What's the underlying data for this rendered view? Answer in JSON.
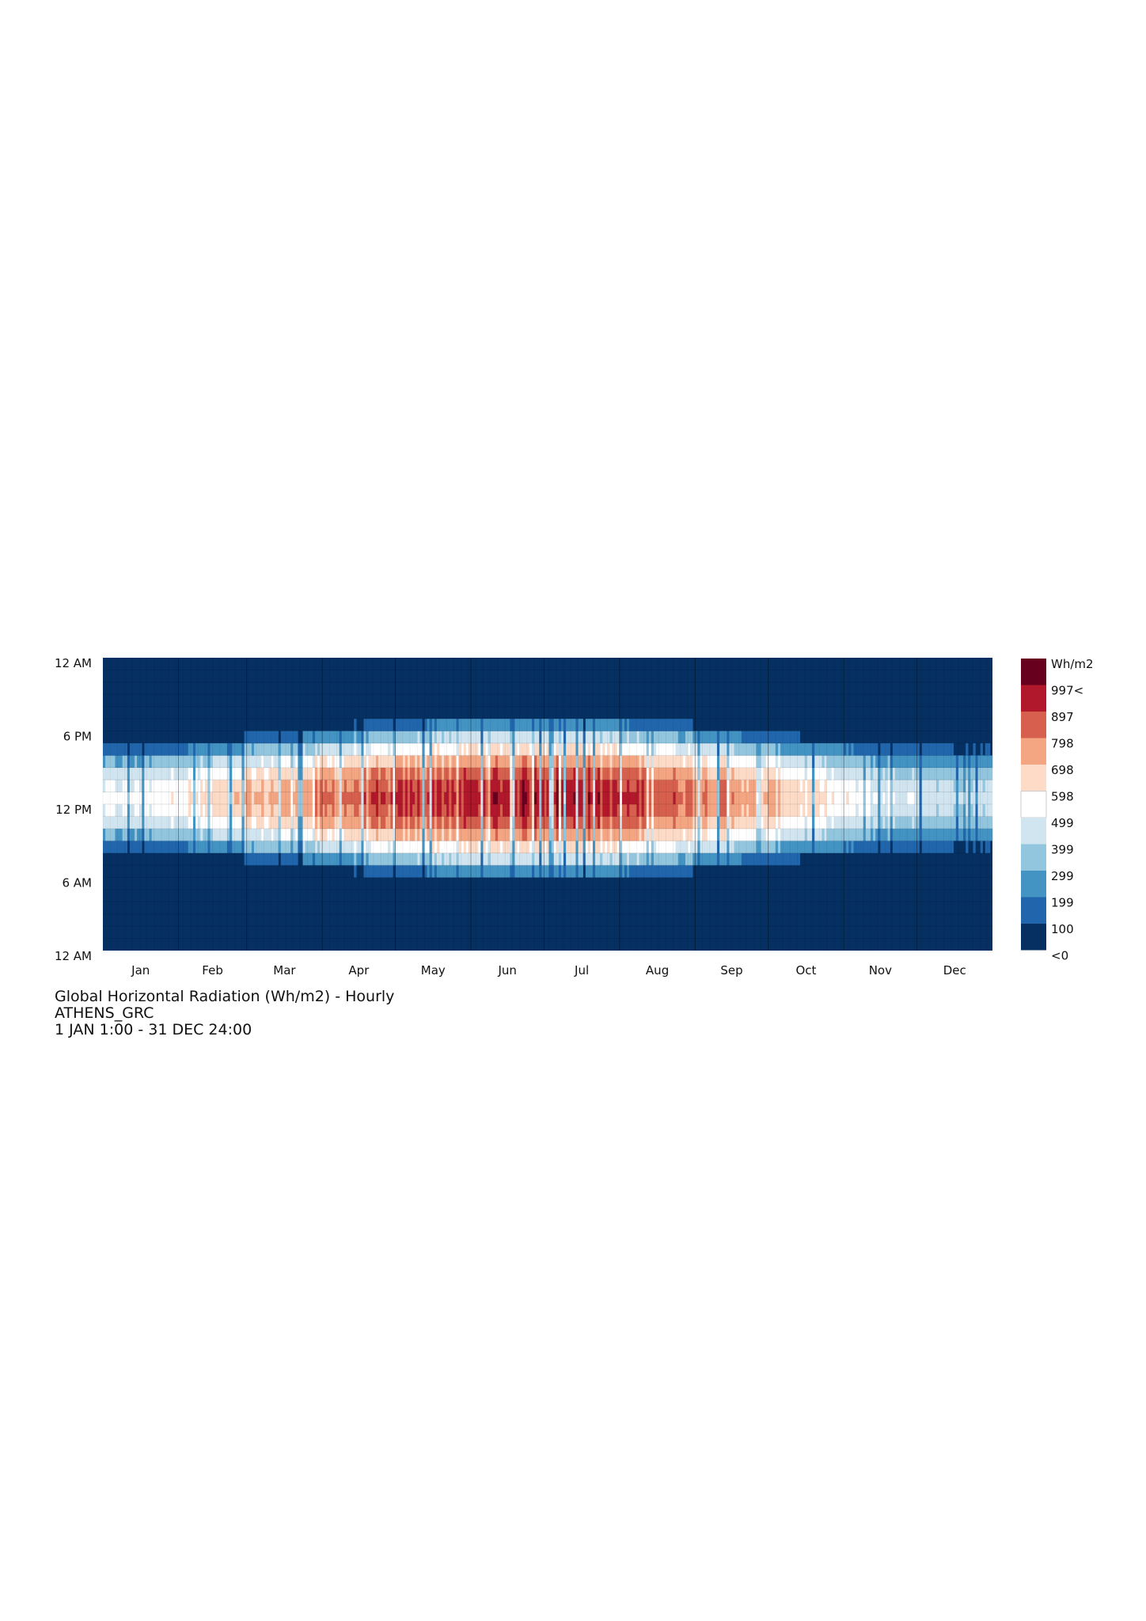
{
  "chart_data": {
    "type": "heatmap",
    "title": "Global Horizontal Radiation (Wh/m2) - Hourly",
    "location": "ATHENS_GRC",
    "period": "1 JAN 1:00 - 31 DEC 24:00",
    "x_ticks": [
      "Jan",
      "Feb",
      "Mar",
      "Apr",
      "May",
      "Jun",
      "Jul",
      "Aug",
      "Sep",
      "Oct",
      "Nov",
      "Dec"
    ],
    "y_ticks": [
      "12 AM",
      "6 PM",
      "12 PM",
      "6 AM",
      "12 AM"
    ],
    "legend": {
      "unit": "Wh/m2",
      "labels": [
        "997<",
        "897",
        "798",
        "698",
        "598",
        "499",
        "399",
        "299",
        "199",
        "100",
        "<0"
      ],
      "colors": [
        "#67001f",
        "#b2182b",
        "#d6604d",
        "#f4a582",
        "#fddbc7",
        "#ffffff",
        "#d1e5f0",
        "#92c5de",
        "#4393c3",
        "#2166ac",
        "#053061"
      ]
    },
    "monthly_peak_noon": [
      560,
      660,
      780,
      880,
      950,
      1010,
      1000,
      930,
      820,
      660,
      530,
      460
    ],
    "monthly_day_length_hours": [
      9.6,
      10.5,
      11.8,
      13.0,
      14.1,
      14.7,
      14.5,
      13.5,
      12.3,
      11.0,
      9.9,
      9.4
    ],
    "months_days": [
      31,
      28,
      31,
      30,
      31,
      30,
      31,
      31,
      30,
      31,
      30,
      31
    ]
  }
}
